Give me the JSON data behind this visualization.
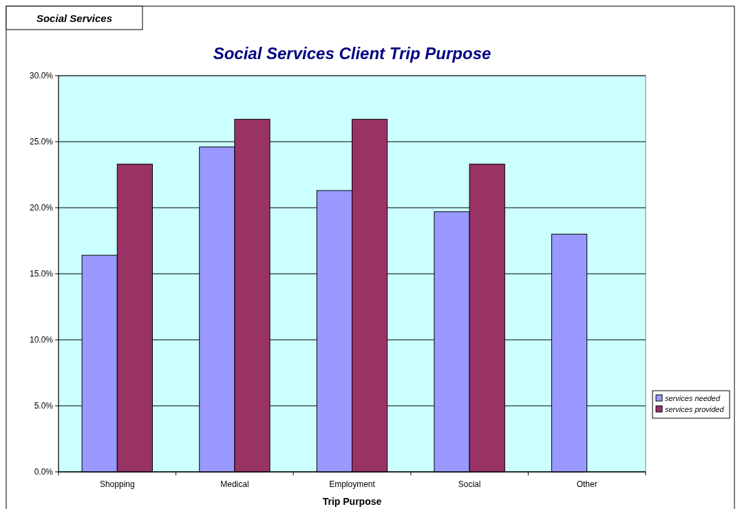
{
  "chart_data": {
    "type": "bar",
    "title": "Social Services Client Trip Purpose",
    "xlabel": "Trip Purpose",
    "annotations": [
      "Social Services"
    ],
    "categories": [
      "Shopping",
      "Medical",
      "Employment",
      "Social",
      "Other"
    ],
    "series": [
      {
        "name": "services needed",
        "color": "#9999ff",
        "values": [
          16.4,
          24.6,
          21.3,
          19.7,
          18.0
        ]
      },
      {
        "name": "services provided",
        "color": "#993366",
        "values": [
          23.3,
          26.7,
          26.7,
          23.3,
          null
        ]
      }
    ],
    "ylim": [
      0,
      30
    ],
    "yticks": [
      {
        "value": 0,
        "label": "0.0%"
      },
      {
        "value": 5,
        "label": "5.0%"
      },
      {
        "value": 10,
        "label": "10.0%"
      },
      {
        "value": 15,
        "label": "15.0%"
      },
      {
        "value": 20,
        "label": "20.0%"
      },
      {
        "value": 25,
        "label": "25.0%"
      },
      {
        "value": 30,
        "label": "30.0%"
      }
    ],
    "grid": "y",
    "legend": "right"
  }
}
